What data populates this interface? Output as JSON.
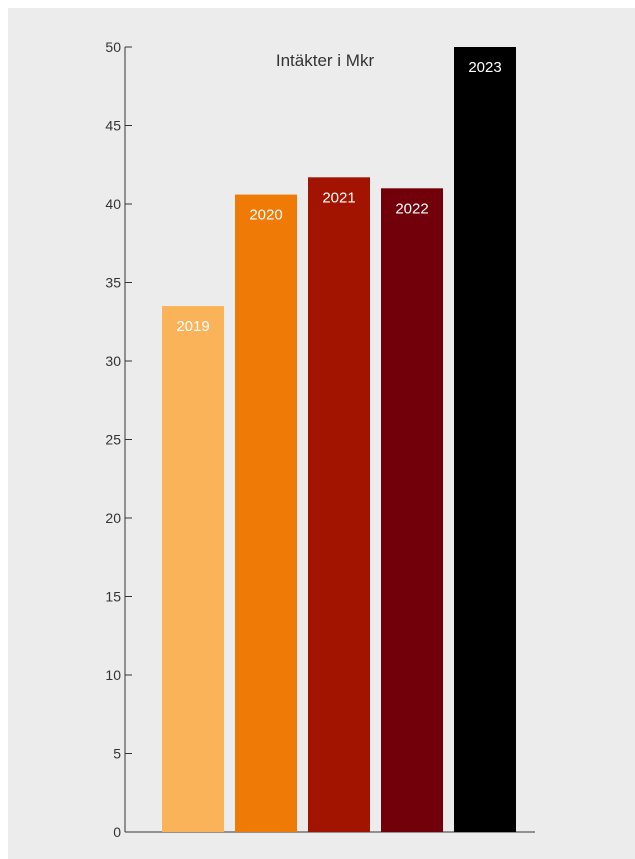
{
  "chart_data": {
    "type": "bar",
    "title": "Intäkter i Mkr",
    "xlabel": "",
    "ylabel": "",
    "categories": [
      "2019",
      "2020",
      "2021",
      "2022",
      "2023"
    ],
    "values": [
      33.5,
      40.6,
      41.7,
      41.0,
      50.0
    ],
    "ylim": [
      0,
      50
    ],
    "yticks": [
      "0",
      "5",
      "10",
      "15",
      "20",
      "25",
      "30",
      "35",
      "40",
      "45",
      "50"
    ],
    "bar_colors": [
      "#fbb35a",
      "#ef7a06",
      "#a31400",
      "#72000b",
      "#000000"
    ],
    "grid": false,
    "legend": "none"
  }
}
